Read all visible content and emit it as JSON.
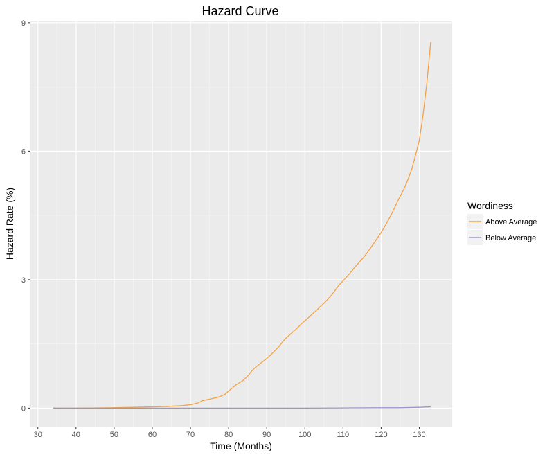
{
  "chart_data": {
    "type": "line",
    "title": "Hazard Curve",
    "xlabel": "Time (Months)",
    "ylabel": "Hazard Rate (%)",
    "xlim": [
      28.05,
      138.45
    ],
    "ylim": [
      -0.43,
      9.03
    ],
    "xticks": [
      30,
      40,
      50,
      60,
      70,
      80,
      90,
      100,
      110,
      120,
      130
    ],
    "xtick_labels": [
      "30",
      "40",
      "50",
      "60",
      "70",
      "80",
      "90",
      "100",
      "110",
      "120",
      "130"
    ],
    "yticks": [
      0,
      3,
      6,
      9
    ],
    "ytick_labels": [
      "0",
      "3",
      "6",
      "9"
    ],
    "grid": true,
    "legend_position": "right",
    "legend": {
      "title": "Wordiness",
      "entries": [
        "Above Average",
        "Below Average"
      ]
    },
    "series": [
      {
        "name": "Above Average",
        "color": "#f5a142",
        "x": [
          34,
          40,
          50,
          55,
          60,
          64,
          66,
          68,
          70,
          72,
          73,
          75,
          77,
          78,
          79,
          80,
          81,
          82,
          83,
          84,
          85,
          86,
          87,
          88,
          89,
          90,
          91,
          92,
          93,
          94,
          95,
          96,
          97,
          98,
          99,
          100,
          101,
          102,
          103,
          104,
          105,
          106,
          107,
          108,
          109,
          110,
          111,
          112,
          113,
          114,
          115,
          116,
          117,
          118,
          119,
          120,
          121,
          122,
          123,
          124,
          125,
          126,
          127,
          128,
          129,
          130,
          131,
          132,
          133
        ],
        "y": [
          0,
          0,
          0.01,
          0.02,
          0.03,
          0.04,
          0.05,
          0.06,
          0.08,
          0.12,
          0.17,
          0.21,
          0.25,
          0.28,
          0.32,
          0.4,
          0.47,
          0.55,
          0.6,
          0.66,
          0.75,
          0.86,
          0.95,
          1.02,
          1.09,
          1.16,
          1.24,
          1.33,
          1.42,
          1.53,
          1.63,
          1.71,
          1.79,
          1.87,
          1.96,
          2.04,
          2.12,
          2.2,
          2.28,
          2.37,
          2.45,
          2.54,
          2.64,
          2.76,
          2.88,
          2.97,
          3.07,
          3.17,
          3.28,
          3.38,
          3.48,
          3.59,
          3.71,
          3.84,
          3.97,
          4.1,
          4.25,
          4.41,
          4.58,
          4.77,
          4.95,
          5.12,
          5.33,
          5.57,
          5.9,
          6.25,
          6.85,
          7.6,
          8.55
        ]
      },
      {
        "name": "Below Average",
        "color": "#9b94c9",
        "x": [
          34,
          50,
          60,
          70,
          80,
          90,
          100,
          110,
          120,
          125,
          130,
          133
        ],
        "y": [
          0,
          0,
          0,
          0,
          0,
          0,
          0,
          0.005,
          0.01,
          0.01,
          0.02,
          0.03
        ]
      }
    ]
  }
}
